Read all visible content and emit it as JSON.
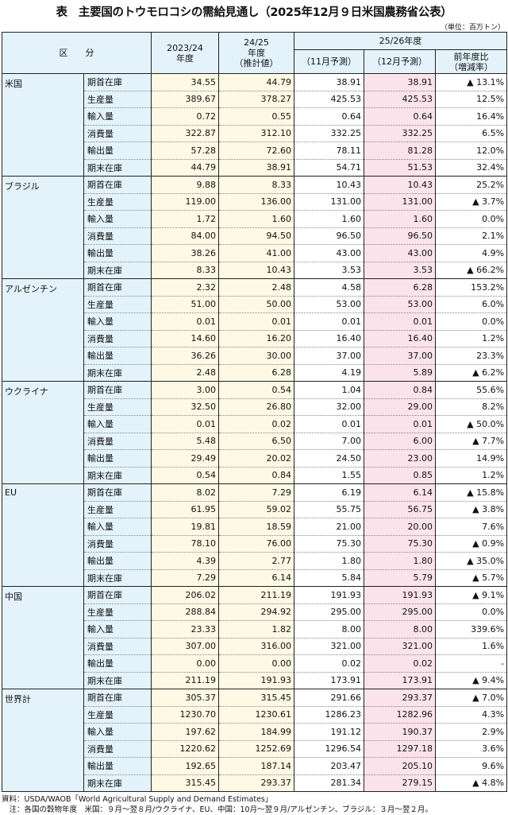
{
  "title": "表　主要国のトウモロコシの需給見通し（2025年12月９日米国農務省公表）",
  "unit": "（単位：百万トン）",
  "header": {
    "category": "区　　分",
    "col1": "2023/24\n年度",
    "col2": "24/25\n年度\n（推計値）",
    "group": "25/26年度",
    "col3": "（11月予測）",
    "col4": "（12月予測）",
    "col5": "前年度比\n（増減率）"
  },
  "colors": {
    "header_bg": "#e4f3fb",
    "past_bg": "#fdf9e4",
    "dec_bg": "#fbe3ec"
  },
  "groups": [
    {
      "country": "米国",
      "rows": [
        [
          "期首在庫",
          "34.55",
          "44.79",
          "38.91",
          "38.91",
          "▲ 13.1%"
        ],
        [
          "生産量",
          "389.67",
          "378.27",
          "425.53",
          "425.53",
          "12.5%"
        ],
        [
          "輸入量",
          "0.72",
          "0.55",
          "0.64",
          "0.64",
          "16.4%"
        ],
        [
          "消費量",
          "322.87",
          "312.10",
          "332.25",
          "332.25",
          "6.5%"
        ],
        [
          "輸出量",
          "57.28",
          "72.60",
          "78.11",
          "81.28",
          "12.0%"
        ],
        [
          "期末在庫",
          "44.79",
          "38.91",
          "54.71",
          "51.53",
          "32.4%"
        ]
      ]
    },
    {
      "country": "ブラジル",
      "rows": [
        [
          "期首在庫",
          "9.88",
          "8.33",
          "10.43",
          "10.43",
          "25.2%"
        ],
        [
          "生産量",
          "119.00",
          "136.00",
          "131.00",
          "131.00",
          "▲ 3.7%"
        ],
        [
          "輸入量",
          "1.72",
          "1.60",
          "1.60",
          "1.60",
          "0.0%"
        ],
        [
          "消費量",
          "84.00",
          "94.50",
          "96.50",
          "96.50",
          "2.1%"
        ],
        [
          "輸出量",
          "38.26",
          "41.00",
          "43.00",
          "43.00",
          "4.9%"
        ],
        [
          "期末在庫",
          "8.33",
          "10.43",
          "3.53",
          "3.53",
          "▲ 66.2%"
        ]
      ]
    },
    {
      "country": "アルゼンチン",
      "rows": [
        [
          "期首在庫",
          "2.32",
          "2.48",
          "4.58",
          "6.28",
          "153.2%"
        ],
        [
          "生産量",
          "51.00",
          "50.00",
          "53.00",
          "53.00",
          "6.0%"
        ],
        [
          "輸入量",
          "0.01",
          "0.01",
          "0.01",
          "0.01",
          "0.0%"
        ],
        [
          "消費量",
          "14.60",
          "16.20",
          "16.40",
          "16.40",
          "1.2%"
        ],
        [
          "輸出量",
          "36.26",
          "30.00",
          "37.00",
          "37.00",
          "23.3%"
        ],
        [
          "期末在庫",
          "2.48",
          "6.28",
          "4.19",
          "5.89",
          "▲ 6.2%"
        ]
      ]
    },
    {
      "country": "ウクライナ",
      "rows": [
        [
          "期首在庫",
          "3.00",
          "0.54",
          "1.04",
          "0.84",
          "55.6%"
        ],
        [
          "生産量",
          "32.50",
          "26.80",
          "32.00",
          "29.00",
          "8.2%"
        ],
        [
          "輸入量",
          "0.01",
          "0.02",
          "0.01",
          "0.01",
          "▲ 50.0%"
        ],
        [
          "消費量",
          "5.48",
          "6.50",
          "7.00",
          "6.00",
          "▲ 7.7%"
        ],
        [
          "輸出量",
          "29.49",
          "20.02",
          "24.50",
          "23.00",
          "14.9%"
        ],
        [
          "期末在庫",
          "0.54",
          "0.84",
          "1.55",
          "0.85",
          "1.2%"
        ]
      ]
    },
    {
      "country": "EU",
      "rows": [
        [
          "期首在庫",
          "8.02",
          "7.29",
          "6.19",
          "6.14",
          "▲ 15.8%"
        ],
        [
          "生産量",
          "61.95",
          "59.02",
          "55.75",
          "56.75",
          "▲ 3.8%"
        ],
        [
          "輸入量",
          "19.81",
          "18.59",
          "21.00",
          "20.00",
          "7.6%"
        ],
        [
          "消費量",
          "78.10",
          "76.00",
          "75.30",
          "75.30",
          "▲ 0.9%"
        ],
        [
          "輸出量",
          "4.39",
          "2.77",
          "1.80",
          "1.80",
          "▲ 35.0%"
        ],
        [
          "期末在庫",
          "7.29",
          "6.14",
          "5.84",
          "5.79",
          "▲ 5.7%"
        ]
      ]
    },
    {
      "country": "中国",
      "rows": [
        [
          "期首在庫",
          "206.02",
          "211.19",
          "191.93",
          "191.93",
          "▲ 9.1%"
        ],
        [
          "生産量",
          "288.84",
          "294.92",
          "295.00",
          "295.00",
          "0.0%"
        ],
        [
          "輸入量",
          "23.33",
          "1.82",
          "8.00",
          "8.00",
          "339.6%"
        ],
        [
          "消費量",
          "307.00",
          "316.00",
          "321.00",
          "321.00",
          "1.6%"
        ],
        [
          "輸出量",
          "0.00",
          "0.00",
          "0.02",
          "0.02",
          "-"
        ],
        [
          "期末在庫",
          "211.19",
          "191.93",
          "173.91",
          "173.91",
          "▲ 9.4%"
        ]
      ]
    },
    {
      "country": "世界計",
      "rows": [
        [
          "期首在庫",
          "305.37",
          "315.45",
          "291.66",
          "293.37",
          "▲ 7.0%"
        ],
        [
          "生産量",
          "1230.70",
          "1230.61",
          "1286.23",
          "1282.96",
          "4.3%"
        ],
        [
          "輸入量",
          "197.62",
          "184.99",
          "191.12",
          "190.37",
          "2.9%"
        ],
        [
          "消費量",
          "1220.62",
          "1252.69",
          "1296.54",
          "1297.18",
          "3.6%"
        ],
        [
          "輸出量",
          "192.65",
          "187.14",
          "203.47",
          "205.10",
          "9.6%"
        ],
        [
          "期末在庫",
          "315.45",
          "293.37",
          "281.34",
          "279.15",
          "▲ 4.8%"
        ]
      ]
    }
  ],
  "footnotes": {
    "source": "資料：USDA/WAOB「World Agricultural Supply and Demand Estimates」",
    "note": "　注：各国の穀物年度　米国：９月～翌８月/ウクライナ、EU、中国：10月～翌９月/アルゼンチン、ブラジル：３月～翌２月。"
  }
}
